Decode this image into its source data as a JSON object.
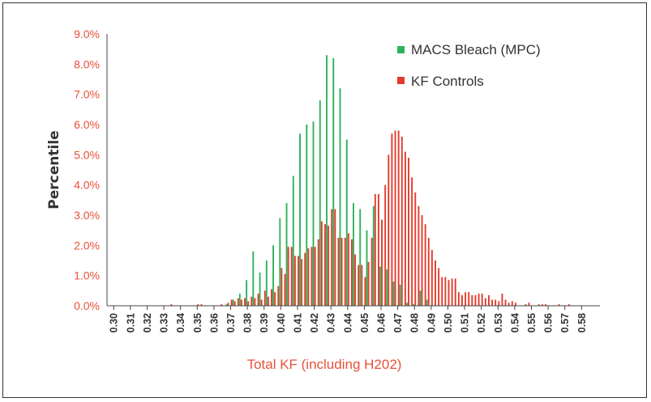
{
  "chart_data": {
    "type": "bar",
    "title": "",
    "xlabel": "Total KF (including H202)",
    "ylabel": "Percentile",
    "ylim": [
      0,
      0.09
    ],
    "y_ticks": [
      "0.0%",
      "1.0%",
      "2.0%",
      "3.0%",
      "4.0%",
      "5.0%",
      "6.0%",
      "7.0%",
      "8.0%",
      "9.0%"
    ],
    "x_ticks": [
      "0.30",
      "0.31",
      "0.32",
      "0.33",
      "0.34",
      "0.35",
      "0.36",
      "0.37",
      "0.38",
      "0.39",
      "0.40",
      "0.41",
      "0.42",
      "0.43",
      "0.44",
      "0.45",
      "0.46",
      "0.47",
      "0.48",
      "0.49",
      "0.50",
      "0.51",
      "0.52",
      "0.53",
      "0.54",
      "0.55",
      "0.56",
      "0.57",
      "0.58"
    ],
    "legend_position": "top-right",
    "grid": false,
    "bin_width": 0.002,
    "x": [
      0.334,
      0.35,
      0.352,
      0.364,
      0.366,
      0.368,
      0.37,
      0.372,
      0.374,
      0.376,
      0.378,
      0.38,
      0.382,
      0.384,
      0.386,
      0.388,
      0.39,
      0.392,
      0.394,
      0.396,
      0.398,
      0.4,
      0.402,
      0.404,
      0.406,
      0.408,
      0.41,
      0.412,
      0.414,
      0.416,
      0.418,
      0.42,
      0.422,
      0.424,
      0.426,
      0.428,
      0.43,
      0.432,
      0.434,
      0.436,
      0.438,
      0.44,
      0.442,
      0.444,
      0.446,
      0.448,
      0.45,
      0.452,
      0.454,
      0.456,
      0.458,
      0.46,
      0.462,
      0.464,
      0.466,
      0.468,
      0.47,
      0.472,
      0.474,
      0.476,
      0.478,
      0.48,
      0.482,
      0.484,
      0.486,
      0.488,
      0.49,
      0.492,
      0.494,
      0.496,
      0.498,
      0.5,
      0.502,
      0.504,
      0.506,
      0.508,
      0.51,
      0.512,
      0.514,
      0.516,
      0.518,
      0.52,
      0.522,
      0.524,
      0.526,
      0.528,
      0.53,
      0.532,
      0.534,
      0.536,
      0.538,
      0.54,
      0.546,
      0.548,
      0.554,
      0.556,
      0.558,
      0.566,
      0.572
    ],
    "series": [
      {
        "name": "MACS Bleach (MPC)",
        "color": "#2db35a",
        "values": [
          0,
          0,
          0,
          0,
          0,
          0.0005,
          0,
          0.002,
          0,
          0.004,
          0,
          0.0085,
          0,
          0.018,
          0,
          0.011,
          0,
          0.015,
          0,
          0.02,
          0,
          0.029,
          0,
          0.034,
          0,
          0.043,
          0,
          0.057,
          0,
          0.06,
          0,
          0.061,
          0,
          0.068,
          0,
          0.083,
          0,
          0.082,
          0,
          0.072,
          0,
          0.055,
          0,
          0.034,
          0,
          0.032,
          0,
          0.025,
          0,
          0.033,
          0,
          0.013,
          0,
          0.012,
          0,
          0.008,
          0,
          0.007,
          0,
          0.001,
          0,
          0.0005,
          0,
          0.005,
          0,
          0.002,
          0,
          0,
          0,
          0,
          0,
          0,
          0,
          0,
          0,
          0,
          0,
          0,
          0,
          0,
          0,
          0,
          0,
          0,
          0,
          0,
          0,
          0,
          0,
          0,
          0,
          0,
          0,
          0,
          0,
          0,
          0,
          0,
          0
        ]
      },
      {
        "name": "KF Controls",
        "color": "#e03c2c",
        "values": [
          0.0005,
          0.0005,
          0.0005,
          0.0005,
          0,
          0.001,
          0.002,
          0.0015,
          0.0025,
          0.002,
          0.0025,
          0.0015,
          0.003,
          0.0025,
          0.004,
          0.002,
          0.005,
          0.003,
          0.0055,
          0.0045,
          0.0065,
          0.0125,
          0.0105,
          0.0195,
          0.0195,
          0.0165,
          0.0165,
          0.0155,
          0.0175,
          0.019,
          0.0195,
          0.0195,
          0.022,
          0.028,
          0.027,
          0.0265,
          0.032,
          0.032,
          0.0225,
          0.0225,
          0.0225,
          0.024,
          0.022,
          0.017,
          0.0135,
          0.0135,
          0.0095,
          0.0145,
          0.0225,
          0.037,
          0.037,
          0.0285,
          0.04,
          0.05,
          0.057,
          0.058,
          0.058,
          0.056,
          0.051,
          0.049,
          0.0425,
          0.0375,
          0.033,
          0.03,
          0.027,
          0.0225,
          0.0185,
          0.015,
          0.0125,
          0.0095,
          0.0095,
          0.0085,
          0.009,
          0.009,
          0.0045,
          0.0035,
          0.0045,
          0.0045,
          0.0035,
          0.0035,
          0.004,
          0.004,
          0.0025,
          0.0035,
          0.002,
          0.002,
          0.0015,
          0.004,
          0.002,
          0.001,
          0.0015,
          0.001,
          0.0005,
          0.001,
          0.0005,
          0.0005,
          0.0005,
          0.0005,
          0.0005
        ]
      }
    ]
  }
}
